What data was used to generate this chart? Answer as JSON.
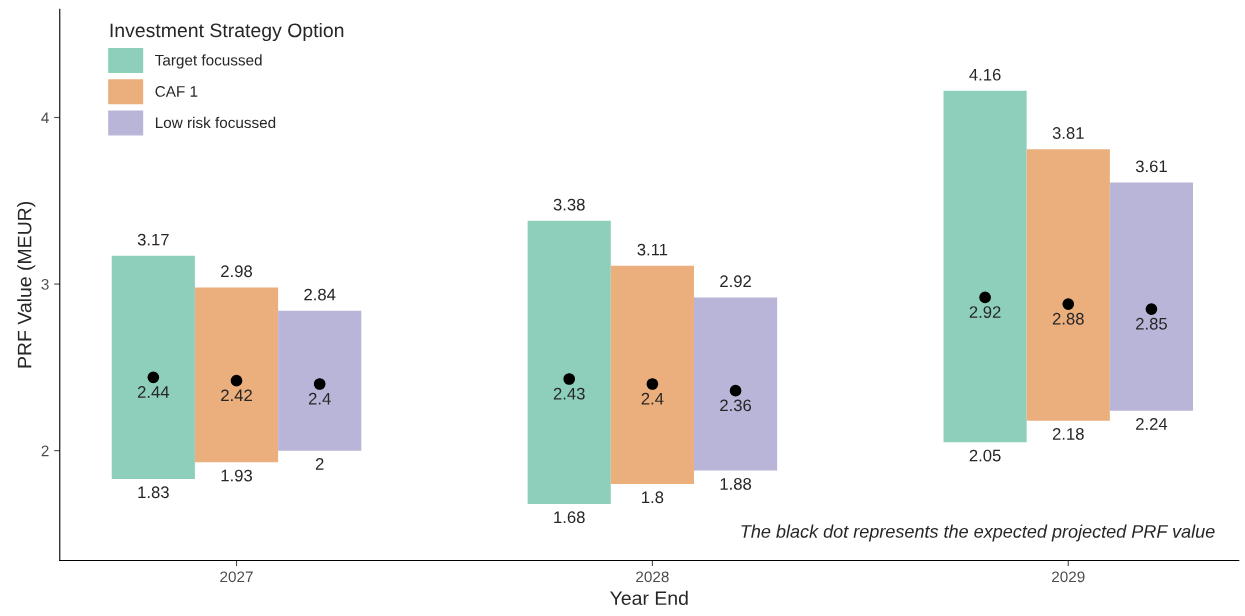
{
  "chart_data": {
    "type": "bar",
    "xlabel": "Year End",
    "ylabel": "PRF Value (MEUR)",
    "legend_title": "Investment Strategy Option",
    "legend": "top left",
    "grid": false,
    "categories": [
      "2027",
      "2028",
      "2029"
    ],
    "ylim": [
      1.34,
      4.65
    ],
    "yticks": [
      2,
      3,
      4
    ],
    "series": [
      {
        "name": "Target focussed",
        "color": "#8ecfbb",
        "base": [
          1.83,
          1.68,
          2.05
        ],
        "values": [
          1.34,
          1.7,
          2.11
        ]
      },
      {
        "name": "CAF 1",
        "color": "#ebae7d",
        "base": [
          1.93,
          1.8,
          2.18
        ],
        "values": [
          1.05,
          1.31,
          1.63
        ]
      },
      {
        "name": "Low risk focussed",
        "color": "#b8b5d8",
        "base": [
          2,
          1.88,
          2.24
        ],
        "values": [
          0.84,
          1.04,
          1.37
        ]
      },
      {
        "type": "scatter",
        "color": "#000000",
        "marker": "circle",
        "values": [
          2.44,
          2.43,
          2.92
        ],
        "value_labels": [
          "2.44",
          "2.43",
          "2.92"
        ]
      },
      {
        "type": "scatter",
        "color": "#000000",
        "marker": "circle",
        "values": [
          2.42,
          2.4,
          2.88
        ],
        "value_labels": [
          "2.42",
          "2.4",
          "2.88"
        ]
      },
      {
        "type": "scatter",
        "color": "#000000",
        "marker": "circle",
        "values": [
          2.4,
          2.36,
          2.85
        ],
        "value_labels": [
          "2.4",
          "2.36",
          "2.85"
        ]
      }
    ],
    "annotations": [
      "3.17",
      "1.83",
      "2.98",
      "1.93",
      "2.84",
      "2",
      "3.38",
      "1.68",
      "3.11",
      "1.8",
      "2.92",
      "1.88",
      "4.16",
      "2.05",
      "3.81",
      "2.18",
      "3.61",
      "2.24",
      "The black dot represents the expected projected PRF value"
    ]
  }
}
